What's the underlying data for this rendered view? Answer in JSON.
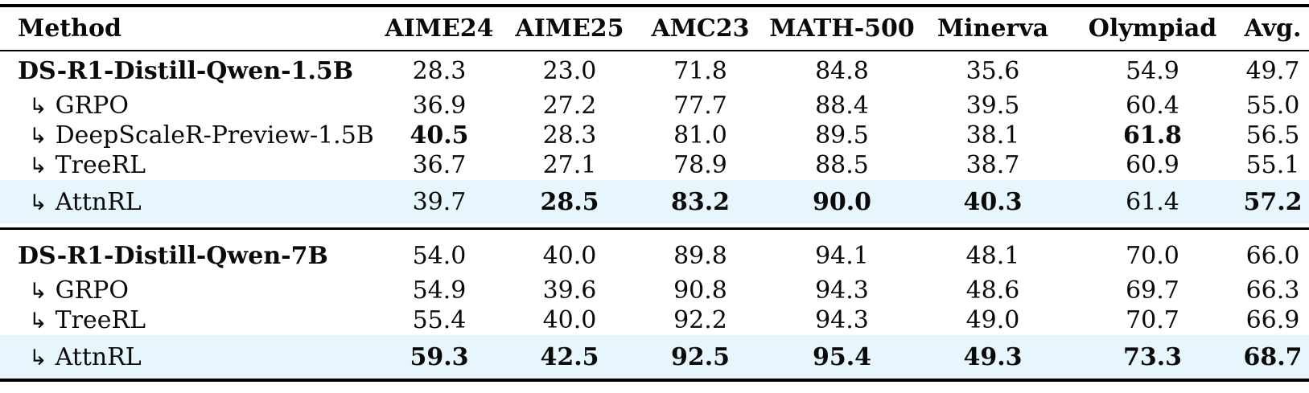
{
  "table": {
    "title": "benchmark-results-table",
    "highlight_color": "#e7f5fd",
    "rule_color": "#000000",
    "indent_marker": "↳",
    "columns": [
      "Method",
      "AIME24",
      "AIME25",
      "AMC23",
      "MATH-500",
      "Minerva",
      "Olympiad",
      "Avg."
    ],
    "sections": [
      {
        "rows": [
          {
            "method": "DS-R1-Distill-Qwen-1.5B",
            "method_bold": true,
            "indent": false,
            "highlight": false,
            "values": [
              "28.3",
              "23.0",
              "71.8",
              "84.8",
              "35.6",
              "54.9",
              "49.7"
            ],
            "value_bold": [
              false,
              false,
              false,
              false,
              false,
              false,
              false
            ]
          },
          {
            "method": "GRPO",
            "method_bold": false,
            "indent": true,
            "highlight": false,
            "values": [
              "36.9",
              "27.2",
              "77.7",
              "88.4",
              "39.5",
              "60.4",
              "55.0"
            ],
            "value_bold": [
              false,
              false,
              false,
              false,
              false,
              false,
              false
            ]
          },
          {
            "method": "DeepScaleR-Preview-1.5B",
            "method_bold": false,
            "indent": true,
            "highlight": false,
            "values": [
              "40.5",
              "28.3",
              "81.0",
              "89.5",
              "38.1",
              "61.8",
              "56.5"
            ],
            "value_bold": [
              true,
              false,
              false,
              false,
              false,
              true,
              false
            ]
          },
          {
            "method": "TreeRL",
            "method_bold": false,
            "indent": true,
            "highlight": false,
            "values": [
              "36.7",
              "27.1",
              "78.9",
              "88.5",
              "38.7",
              "60.9",
              "55.1"
            ],
            "value_bold": [
              false,
              false,
              false,
              false,
              false,
              false,
              false
            ]
          },
          {
            "method": "AttnRL",
            "method_bold": false,
            "indent": true,
            "highlight": true,
            "values": [
              "39.7",
              "28.5",
              "83.2",
              "90.0",
              "40.3",
              "61.4",
              "57.2"
            ],
            "value_bold": [
              false,
              true,
              true,
              true,
              true,
              false,
              true
            ]
          }
        ]
      },
      {
        "rows": [
          {
            "method": "DS-R1-Distill-Qwen-7B",
            "method_bold": true,
            "indent": false,
            "highlight": false,
            "values": [
              "54.0",
              "40.0",
              "89.8",
              "94.1",
              "48.1",
              "70.0",
              "66.0"
            ],
            "value_bold": [
              false,
              false,
              false,
              false,
              false,
              false,
              false
            ]
          },
          {
            "method": "GRPO",
            "method_bold": false,
            "indent": true,
            "highlight": false,
            "values": [
              "54.9",
              "39.6",
              "90.8",
              "94.3",
              "48.6",
              "69.7",
              "66.3"
            ],
            "value_bold": [
              false,
              false,
              false,
              false,
              false,
              false,
              false
            ]
          },
          {
            "method": "TreeRL",
            "method_bold": false,
            "indent": true,
            "highlight": false,
            "values": [
              "55.4",
              "40.0",
              "92.2",
              "94.3",
              "49.0",
              "70.7",
              "66.9"
            ],
            "value_bold": [
              false,
              false,
              false,
              false,
              false,
              false,
              false
            ]
          },
          {
            "method": "AttnRL",
            "method_bold": false,
            "indent": true,
            "highlight": true,
            "values": [
              "59.3",
              "42.5",
              "92.5",
              "95.4",
              "49.3",
              "73.3",
              "68.7"
            ],
            "value_bold": [
              true,
              true,
              true,
              true,
              true,
              true,
              true
            ]
          }
        ]
      }
    ]
  }
}
